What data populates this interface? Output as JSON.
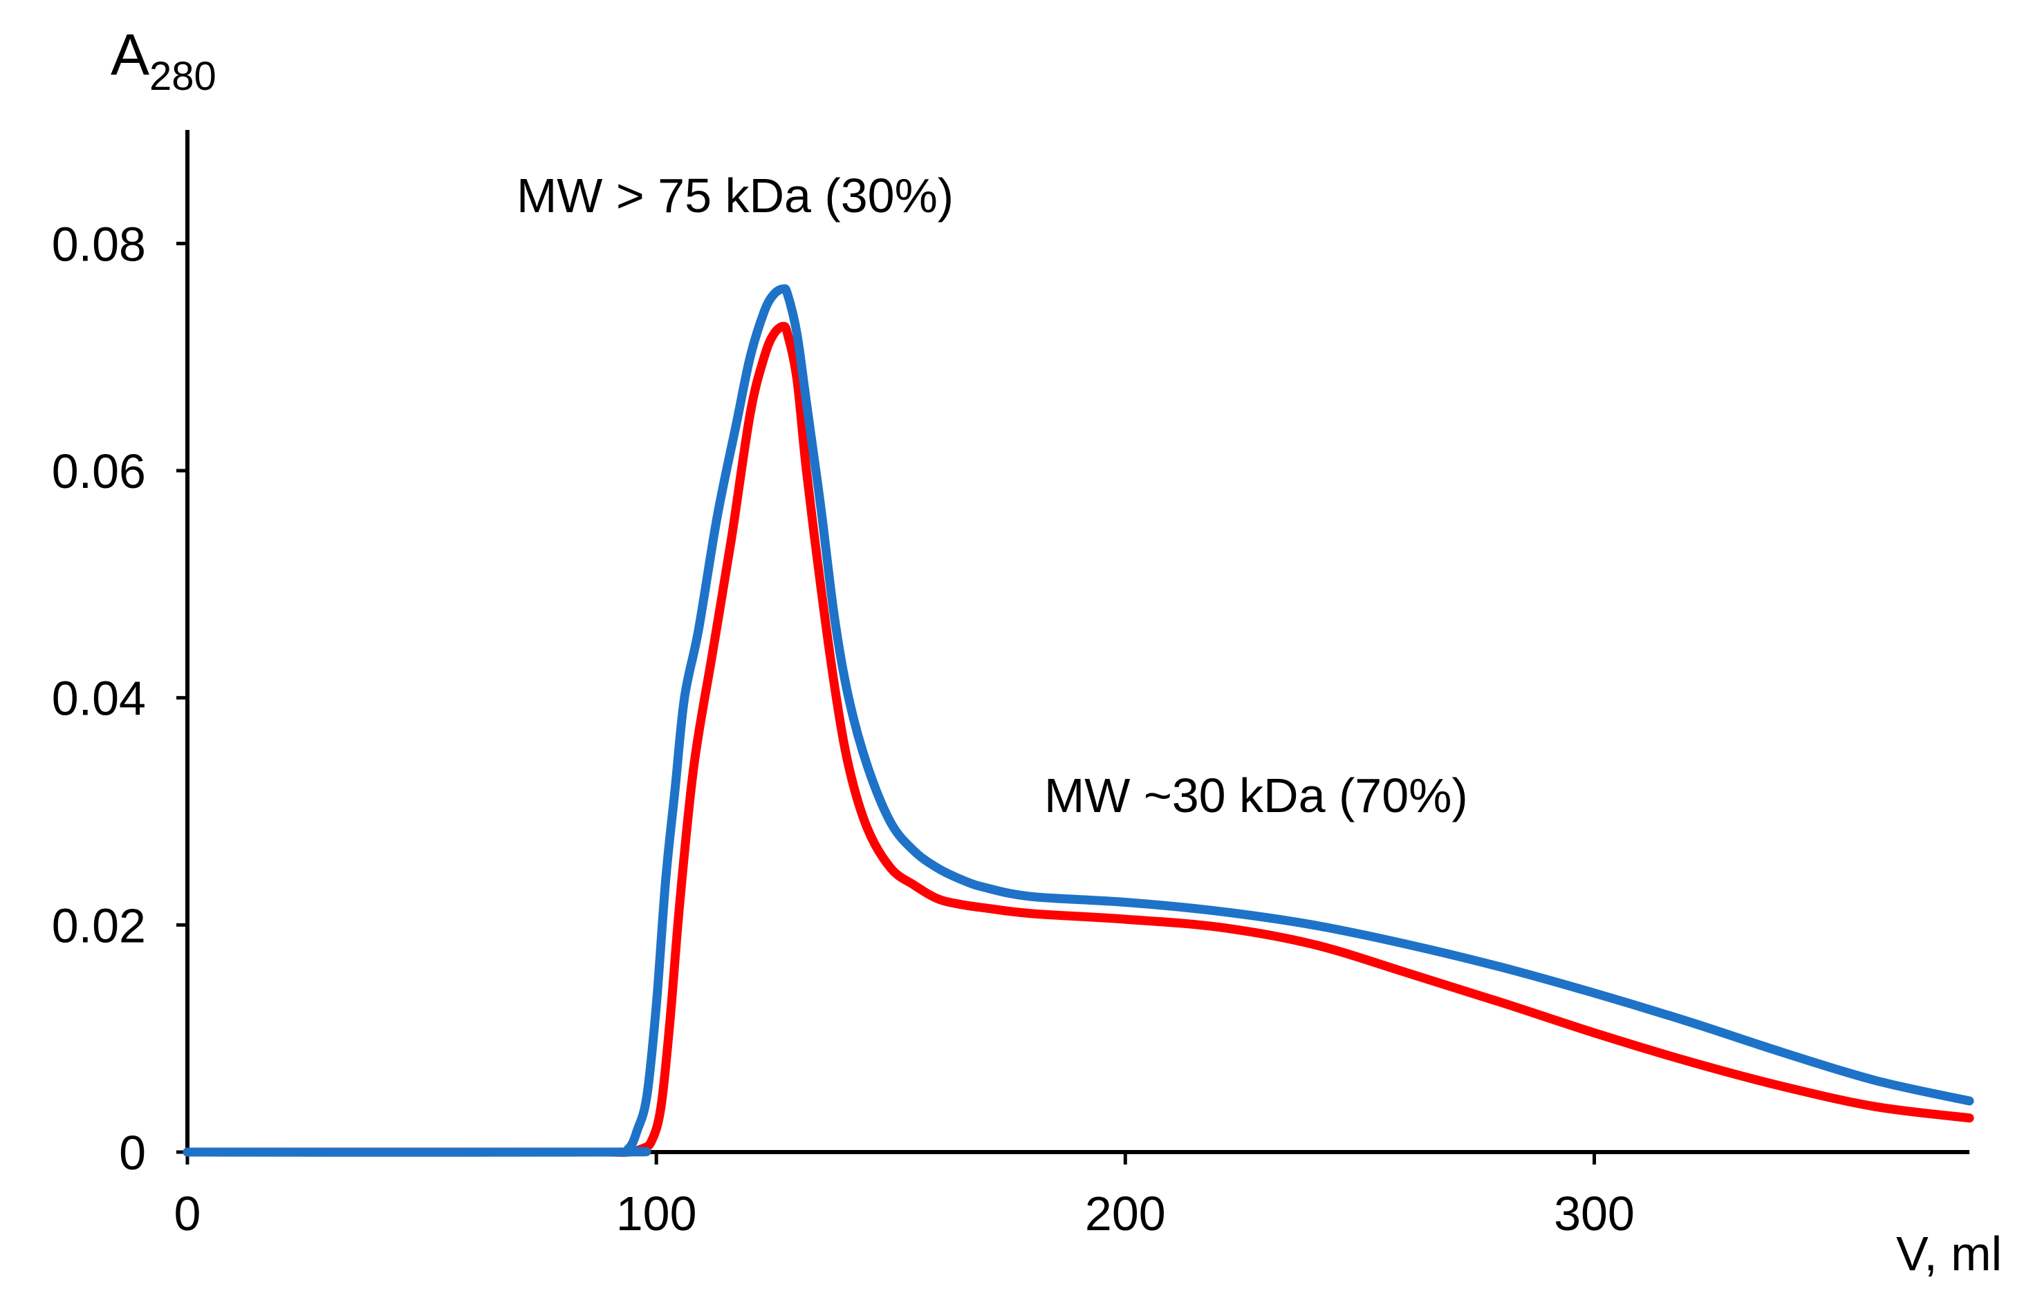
{
  "chart_data": {
    "type": "line",
    "title": "",
    "ylabel": "A",
    "ylabel_subscript": "280",
    "xlabel": "V, ml",
    "xlim": [
      0,
      380
    ],
    "ylim": [
      0,
      0.09
    ],
    "grid": false,
    "x_ticks": [
      0,
      100,
      200,
      300
    ],
    "x_tick_labels": [
      "0",
      "100",
      "200",
      "300"
    ],
    "y_ticks": [
      0,
      0.02,
      0.04,
      0.06,
      0.08
    ],
    "y_tick_labels": [
      "0",
      "0.02",
      "0.04",
      "0.06",
      "0.08"
    ],
    "annotations": [
      {
        "text": "MW > 75 kDa (30%)",
        "x": 70,
        "y": 0.083
      },
      {
        "text": "MW ~30 kDa (70%)",
        "x": 183,
        "y": 0.032
      }
    ],
    "series": [
      {
        "name": "red",
        "color": "#ff0000",
        "x": [
          0,
          80,
          90,
          94,
          97,
          99,
          101,
          103,
          105,
          108,
          112,
          116,
          120,
          123,
          125,
          127,
          128,
          130,
          132,
          135,
          138,
          141,
          145,
          150,
          155,
          160,
          165,
          170,
          180,
          200,
          220,
          240,
          260,
          280,
          300,
          320,
          340,
          360,
          380
        ],
        "y": [
          0,
          0,
          0,
          0,
          0.0003,
          0.001,
          0.004,
          0.012,
          0.022,
          0.034,
          0.044,
          0.054,
          0.065,
          0.07,
          0.072,
          0.0727,
          0.072,
          0.068,
          0.06,
          0.05,
          0.041,
          0.034,
          0.0285,
          0.025,
          0.0235,
          0.0223,
          0.0218,
          0.0215,
          0.021,
          0.0205,
          0.0198,
          0.0183,
          0.0158,
          0.0132,
          0.0105,
          0.008,
          0.0058,
          0.004,
          0.003
        ]
      },
      {
        "name": "blue",
        "color": "#1e73c8",
        "x": [
          0,
          90,
          94,
          96,
          98,
          100,
          102,
          104,
          106,
          109,
          113,
          117,
          120,
          123,
          125,
          127,
          128,
          130,
          132,
          135,
          138,
          141,
          145,
          150,
          155,
          160,
          165,
          170,
          180,
          200,
          220,
          240,
          260,
          280,
          300,
          320,
          340,
          360,
          380
        ],
        "y": [
          0,
          0,
          0.0003,
          0.002,
          0.005,
          0.013,
          0.024,
          0.032,
          0.04,
          0.046,
          0.056,
          0.064,
          0.07,
          0.074,
          0.0755,
          0.076,
          0.0755,
          0.072,
          0.066,
          0.057,
          0.047,
          0.04,
          0.034,
          0.029,
          0.0265,
          0.025,
          0.024,
          0.0233,
          0.0225,
          0.022,
          0.0212,
          0.02,
          0.0183,
          0.0163,
          0.014,
          0.0115,
          0.0088,
          0.0063,
          0.0045
        ]
      }
    ]
  }
}
